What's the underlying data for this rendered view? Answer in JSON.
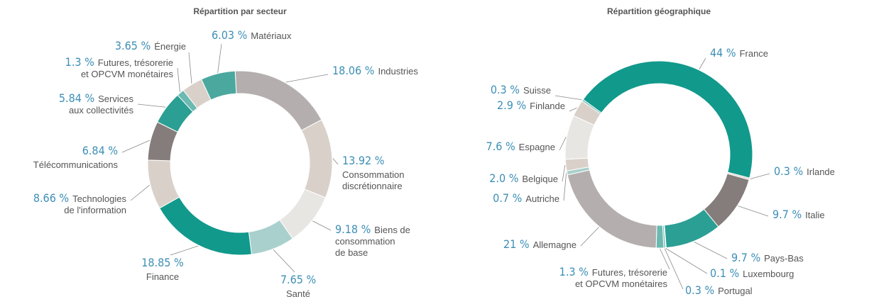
{
  "chart_data": [
    {
      "type": "pie",
      "title": "Répartition par secteur",
      "categories": [
        "Industries",
        "Consommation\ndiscrétionnaire",
        "Biens de\nconsommation\nde base",
        "Santé",
        "Finance",
        "Technologies\nde l'information",
        "Télécommunications",
        "Services\naux collectivités",
        "Futures, trésorerie\net OPCVM monétaires",
        "Énergie",
        "Matériaux"
      ],
      "values": [
        18.06,
        13.92,
        9.18,
        7.65,
        18.85,
        8.66,
        6.84,
        5.84,
        1.3,
        3.65,
        6.03
      ],
      "value_labels": [
        "18.06 %",
        "13.92 %",
        "9.18 %",
        "7.65 %",
        "18.85 %",
        "8.66 %",
        "6.84 %",
        "5.84 %",
        "1.3 %",
        "3.65 %",
        "6.03 %"
      ],
      "colors": [
        "#b4afae",
        "#d9d1c9",
        "#e8e6e3",
        "#a9d0cc",
        "#11998c",
        "#d9d1c9",
        "#857d7b",
        "#2b9f94",
        "#6cb9b1",
        "#d9d1c9",
        "#4ba89f"
      ]
    },
    {
      "type": "pie",
      "title": "Répartition géographique",
      "categories": [
        "France",
        "Irlande",
        "Italie",
        "Pays-Bas",
        "Luxembourg",
        "Portugal",
        "Futures, trésorerie\net OPCVM monétaires",
        "Allemagne",
        "Autriche",
        "Belgique",
        "Espagne",
        "Finlande",
        "Suisse"
      ],
      "values": [
        44,
        0.3,
        9.7,
        9.7,
        0.1,
        0.3,
        1.3,
        21,
        0.7,
        2.0,
        7.6,
        2.9,
        0.3
      ],
      "value_labels": [
        "44 %",
        "0.3 %",
        "9.7 %",
        "9.7 %",
        "0.1 %",
        "0.3 %",
        "1.3 %",
        "21 %",
        "0.7 %",
        "2.0 %",
        "7.6 %",
        "2.9 %",
        "0.3 %"
      ],
      "colors": [
        "#11998c",
        "#d9d1c9",
        "#857d7b",
        "#2b9f94",
        "#d9d1c9",
        "#6cb9b1",
        "#6cb9b1",
        "#b4afae",
        "#a9d0cc",
        "#d9d1c9",
        "#e8e6e3",
        "#d9d1c9",
        "#6cb9b1"
      ]
    }
  ]
}
